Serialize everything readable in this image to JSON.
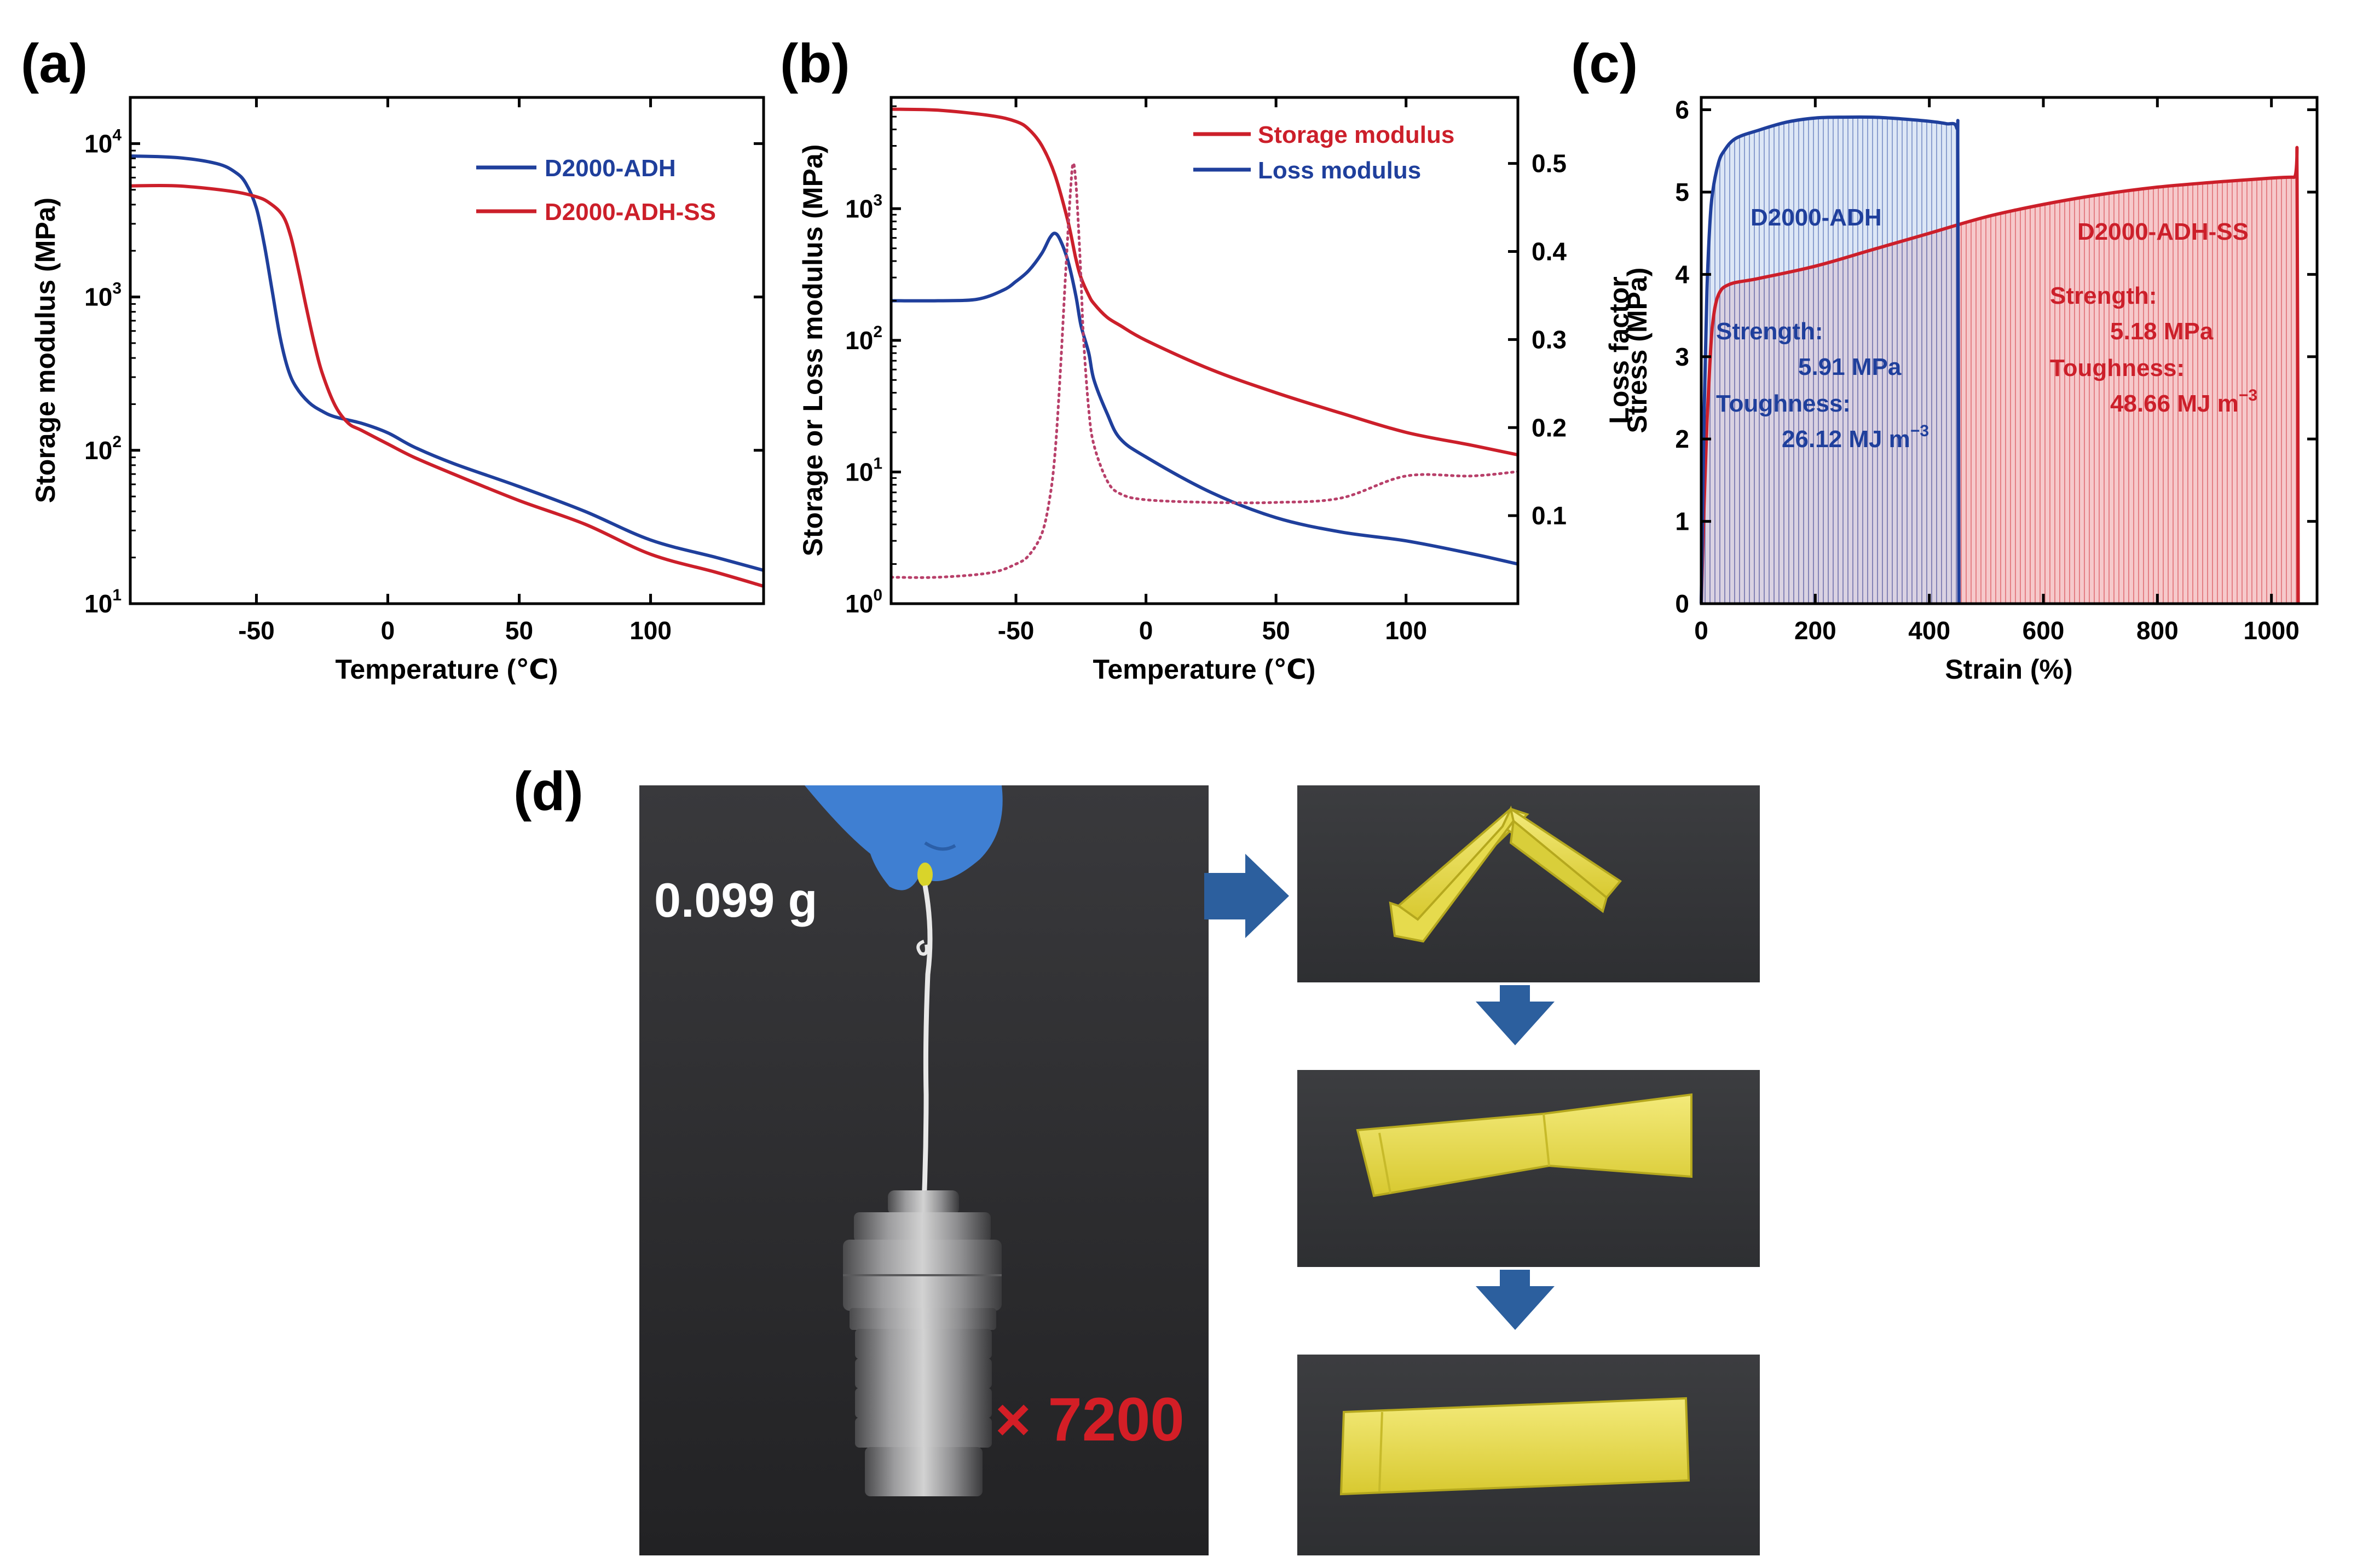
{
  "panel_labels": {
    "a": "(a)",
    "b": "(b)",
    "c": "(c)",
    "d": "(d)"
  },
  "colors": {
    "blue": "#1f3f9c",
    "red": "#cc1f2a",
    "dotted": "#b8406a",
    "blue_fill": "#c8d8f0",
    "red_fill": "#f6c6c8",
    "photo_bg": "#2d2d2f",
    "arrow": "#2c5f9e",
    "photo_text": "#ffffff",
    "photo_mult": "#d41e26"
  },
  "chart_data": [
    {
      "id": "a",
      "type": "line",
      "xlabel": "Temperature (℃)",
      "ylabel": "Storage modulus (MPa)",
      "xlim": [
        -98,
        143
      ],
      "ylim": [
        10,
        20000
      ],
      "yscale": "log",
      "xticks": [
        -50,
        0,
        50,
        100
      ],
      "yticks": [
        10,
        100,
        1000,
        10000
      ],
      "ytick_labels": [
        [
          "10",
          "1"
        ],
        [
          "10",
          "2"
        ],
        [
          "10",
          "3"
        ],
        [
          "10",
          "4"
        ]
      ],
      "legend": "top-right",
      "series": [
        {
          "name": "D2000-ADH",
          "color": "blue",
          "x": [
            -98,
            -80,
            -65,
            -58,
            -54,
            -50,
            -47,
            -44,
            -41,
            -38,
            -35,
            -30,
            -25,
            -20,
            -10,
            0,
            10,
            25,
            50,
            75,
            100,
            125,
            143
          ],
          "y": [
            8300,
            8100,
            7400,
            6500,
            5500,
            3800,
            2200,
            1100,
            550,
            340,
            260,
            205,
            180,
            165,
            150,
            130,
            105,
            82,
            58,
            40,
            26,
            20,
            16.5
          ]
        },
        {
          "name": "D2000-ADH-SS",
          "color": "red",
          "x": [
            -98,
            -80,
            -60,
            -50,
            -45,
            -40,
            -37,
            -34,
            -31,
            -28,
            -25,
            -20,
            -15,
            -10,
            0,
            10,
            25,
            50,
            75,
            100,
            125,
            143
          ],
          "y": [
            5300,
            5300,
            4900,
            4500,
            4100,
            3400,
            2500,
            1500,
            850,
            500,
            320,
            195,
            150,
            135,
            110,
            90,
            70,
            47,
            33,
            21,
            16,
            13
          ]
        }
      ]
    },
    {
      "id": "b",
      "type": "line",
      "xlabel": "Temperature (℃)",
      "ylabel": "Storage or Loss modulus (MPa)",
      "y2label": "Loss factor",
      "xlim": [
        -98,
        143
      ],
      "ylim": [
        1,
        7000
      ],
      "yscale": "log",
      "y2lim": [
        0.0,
        0.575
      ],
      "xticks": [
        -50,
        0,
        50,
        100
      ],
      "yticks": [
        1,
        10,
        100,
        1000
      ],
      "ytick_labels": [
        [
          "10",
          "0"
        ],
        [
          "10",
          "1"
        ],
        [
          "10",
          "2"
        ],
        [
          "10",
          "3"
        ]
      ],
      "y2ticks": [
        0.1,
        0.2,
        0.3,
        0.4,
        0.5
      ],
      "legend": "top-right",
      "series": [
        {
          "name": "Storage modulus",
          "color": "red",
          "axis": "y",
          "x": [
            -98,
            -80,
            -60,
            -50,
            -45,
            -40,
            -35,
            -30,
            -27,
            -25,
            -22,
            -20,
            -15,
            -10,
            0,
            25,
            50,
            75,
            100,
            125,
            143
          ],
          "y": [
            5700,
            5600,
            5100,
            4600,
            4000,
            3000,
            1800,
            800,
            420,
            300,
            220,
            190,
            150,
            130,
            100,
            60,
            40,
            28,
            20,
            16,
            13.5
          ]
        },
        {
          "name": "Loss modulus",
          "color": "blue",
          "axis": "y",
          "x": [
            -98,
            -80,
            -65,
            -55,
            -50,
            -45,
            -40,
            -37,
            -35,
            -33,
            -30,
            -27,
            -25,
            -22,
            -20,
            -15,
            -10,
            0,
            25,
            50,
            75,
            100,
            125,
            143
          ],
          "y": [
            200,
            200,
            205,
            240,
            280,
            340,
            460,
            600,
            650,
            580,
            400,
            220,
            130,
            80,
            50,
            28,
            18,
            13,
            7,
            4.5,
            3.5,
            3,
            2.4,
            2
          ]
        },
        {
          "name": "",
          "color": "dotted",
          "axis": "y2",
          "style": "dotted",
          "x": [
            -98,
            -80,
            -60,
            -50,
            -45,
            -40,
            -37,
            -35,
            -33,
            -31,
            -29,
            -28,
            -27,
            -26,
            -25,
            -24,
            -22,
            -20,
            -15,
            -10,
            0,
            25,
            50,
            75,
            100,
            125,
            143
          ],
          "y": [
            0.03,
            0.03,
            0.035,
            0.045,
            0.055,
            0.08,
            0.12,
            0.17,
            0.26,
            0.37,
            0.47,
            0.5,
            0.48,
            0.43,
            0.37,
            0.3,
            0.22,
            0.18,
            0.14,
            0.125,
            0.118,
            0.115,
            0.115,
            0.12,
            0.145,
            0.145,
            0.15
          ]
        }
      ]
    },
    {
      "id": "c",
      "type": "area",
      "xlabel": "Strain (%)",
      "ylabel": "Stress (MPa)",
      "xlim": [
        0,
        1080
      ],
      "ylim": [
        0,
        6.15
      ],
      "xticks": [
        0,
        200,
        400,
        600,
        800,
        1000
      ],
      "yticks": [
        0,
        1,
        2,
        3,
        4,
        5,
        6
      ],
      "series": [
        {
          "name": "D2000-ADH",
          "color": "blue",
          "fill": "blue_fill",
          "x": [
            0,
            5,
            10,
            15,
            20,
            30,
            40,
            60,
            100,
            150,
            200,
            250,
            300,
            350,
            400,
            430,
            448,
            450,
            452
          ],
          "y": [
            0,
            2.3,
            3.8,
            4.6,
            5.0,
            5.35,
            5.5,
            5.65,
            5.75,
            5.85,
            5.9,
            5.91,
            5.91,
            5.89,
            5.86,
            5.83,
            5.78,
            5.3,
            0
          ]
        },
        {
          "name": "D2000-ADH-SS",
          "color": "red",
          "fill": "red_fill",
          "x": [
            0,
            5,
            10,
            15,
            20,
            30,
            50,
            100,
            200,
            300,
            400,
            500,
            600,
            700,
            800,
            900,
            1000,
            1040,
            1045,
            1047
          ],
          "y": [
            0,
            1.2,
            2.2,
            2.9,
            3.4,
            3.75,
            3.88,
            3.95,
            4.1,
            4.3,
            4.5,
            4.7,
            4.85,
            4.97,
            5.06,
            5.12,
            5.17,
            5.18,
            5.15,
            0
          ]
        }
      ],
      "annotations": {
        "adh_name": "D2000-ADH",
        "adh_strength_label": "Strength:",
        "adh_strength_value": "5.91 MPa",
        "adh_toughness_label": "Toughness:",
        "adh_toughness_value": "26.12 MJ m",
        "adh_toughness_exp": "−3",
        "ss_name": "D2000-ADH-SS",
        "ss_strength_label": "Strength:",
        "ss_strength_value": "5.18 MPa",
        "ss_toughness_label": "Toughness:",
        "ss_toughness_value": "48.66 MJ m",
        "ss_toughness_exp": "−3"
      }
    }
  ],
  "panel_d": {
    "weight_label": "0.099 g",
    "multiplier_label": "× 7200"
  }
}
